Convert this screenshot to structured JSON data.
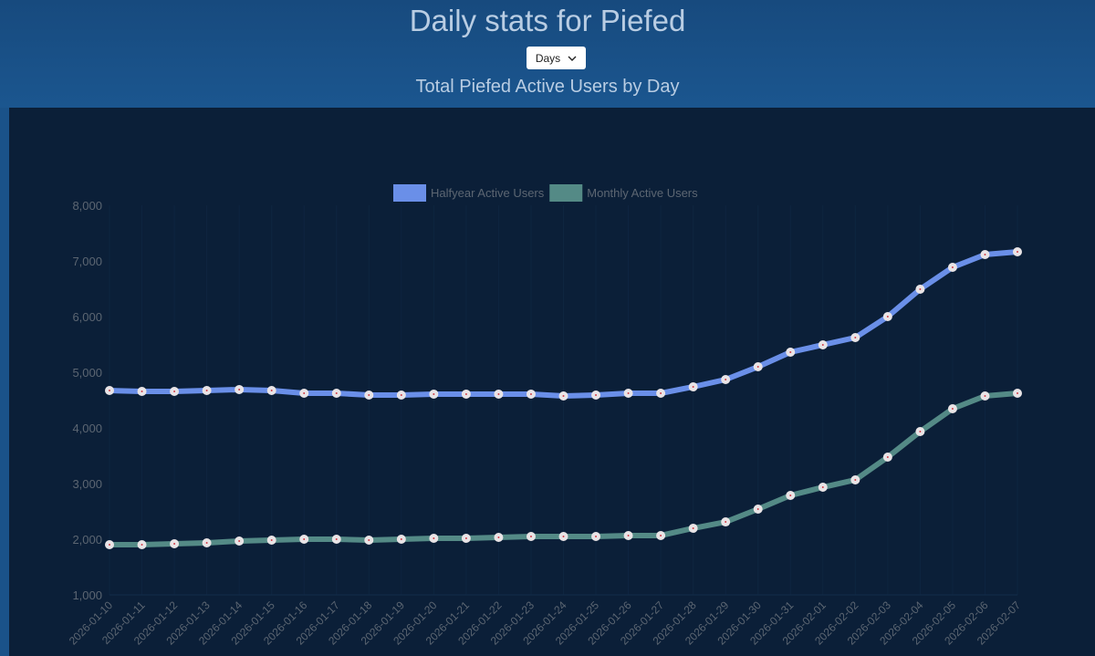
{
  "header": {
    "title": "Daily stats for Piefed",
    "period_select": "Days",
    "chevron_icon": "chevron-down-icon"
  },
  "chart_data": {
    "type": "line",
    "title": "Total Piefed Active Users by Day",
    "xlabel": "",
    "ylabel": "",
    "ylim": [
      1000,
      8000
    ],
    "yticks": [
      "1,000",
      "2,000",
      "3,000",
      "4,000",
      "5,000",
      "6,000",
      "7,000",
      "8,000"
    ],
    "legend_position": "top",
    "categories": [
      "2026-01-10",
      "2026-01-11",
      "2026-01-12",
      "2026-01-13",
      "2026-01-14",
      "2026-01-15",
      "2026-01-16",
      "2026-01-17",
      "2026-01-18",
      "2026-01-19",
      "2026-01-20",
      "2026-01-21",
      "2026-01-22",
      "2026-01-23",
      "2026-01-24",
      "2026-01-25",
      "2026-01-26",
      "2026-01-27",
      "2026-01-28",
      "2026-01-29",
      "2026-01-30",
      "2026-01-31",
      "2026-02-01",
      "2026-02-02",
      "2026-02-03",
      "2026-02-04",
      "2026-02-05",
      "2026-02-06",
      "2026-02-07"
    ],
    "series": [
      {
        "name": "Halfyear Active Users",
        "color": "#6a8fe8",
        "values": [
          4672,
          4656,
          4656,
          4672,
          4689,
          4672,
          4623,
          4623,
          4590,
          4590,
          4607,
          4607,
          4607,
          4607,
          4574,
          4590,
          4623,
          4623,
          4738,
          4869,
          5098,
          5361,
          5492,
          5623,
          6000,
          6492,
          6885,
          7115,
          7164
        ]
      },
      {
        "name": "Monthly Active Users",
        "color": "#548a86",
        "values": [
          1902,
          1902,
          1918,
          1934,
          1967,
          1984,
          2000,
          2000,
          1984,
          2000,
          2016,
          2016,
          2033,
          2049,
          2049,
          2049,
          2066,
          2066,
          2197,
          2311,
          2541,
          2787,
          2934,
          3066,
          3475,
          3934,
          4344,
          4574,
          4623
        ]
      }
    ]
  }
}
